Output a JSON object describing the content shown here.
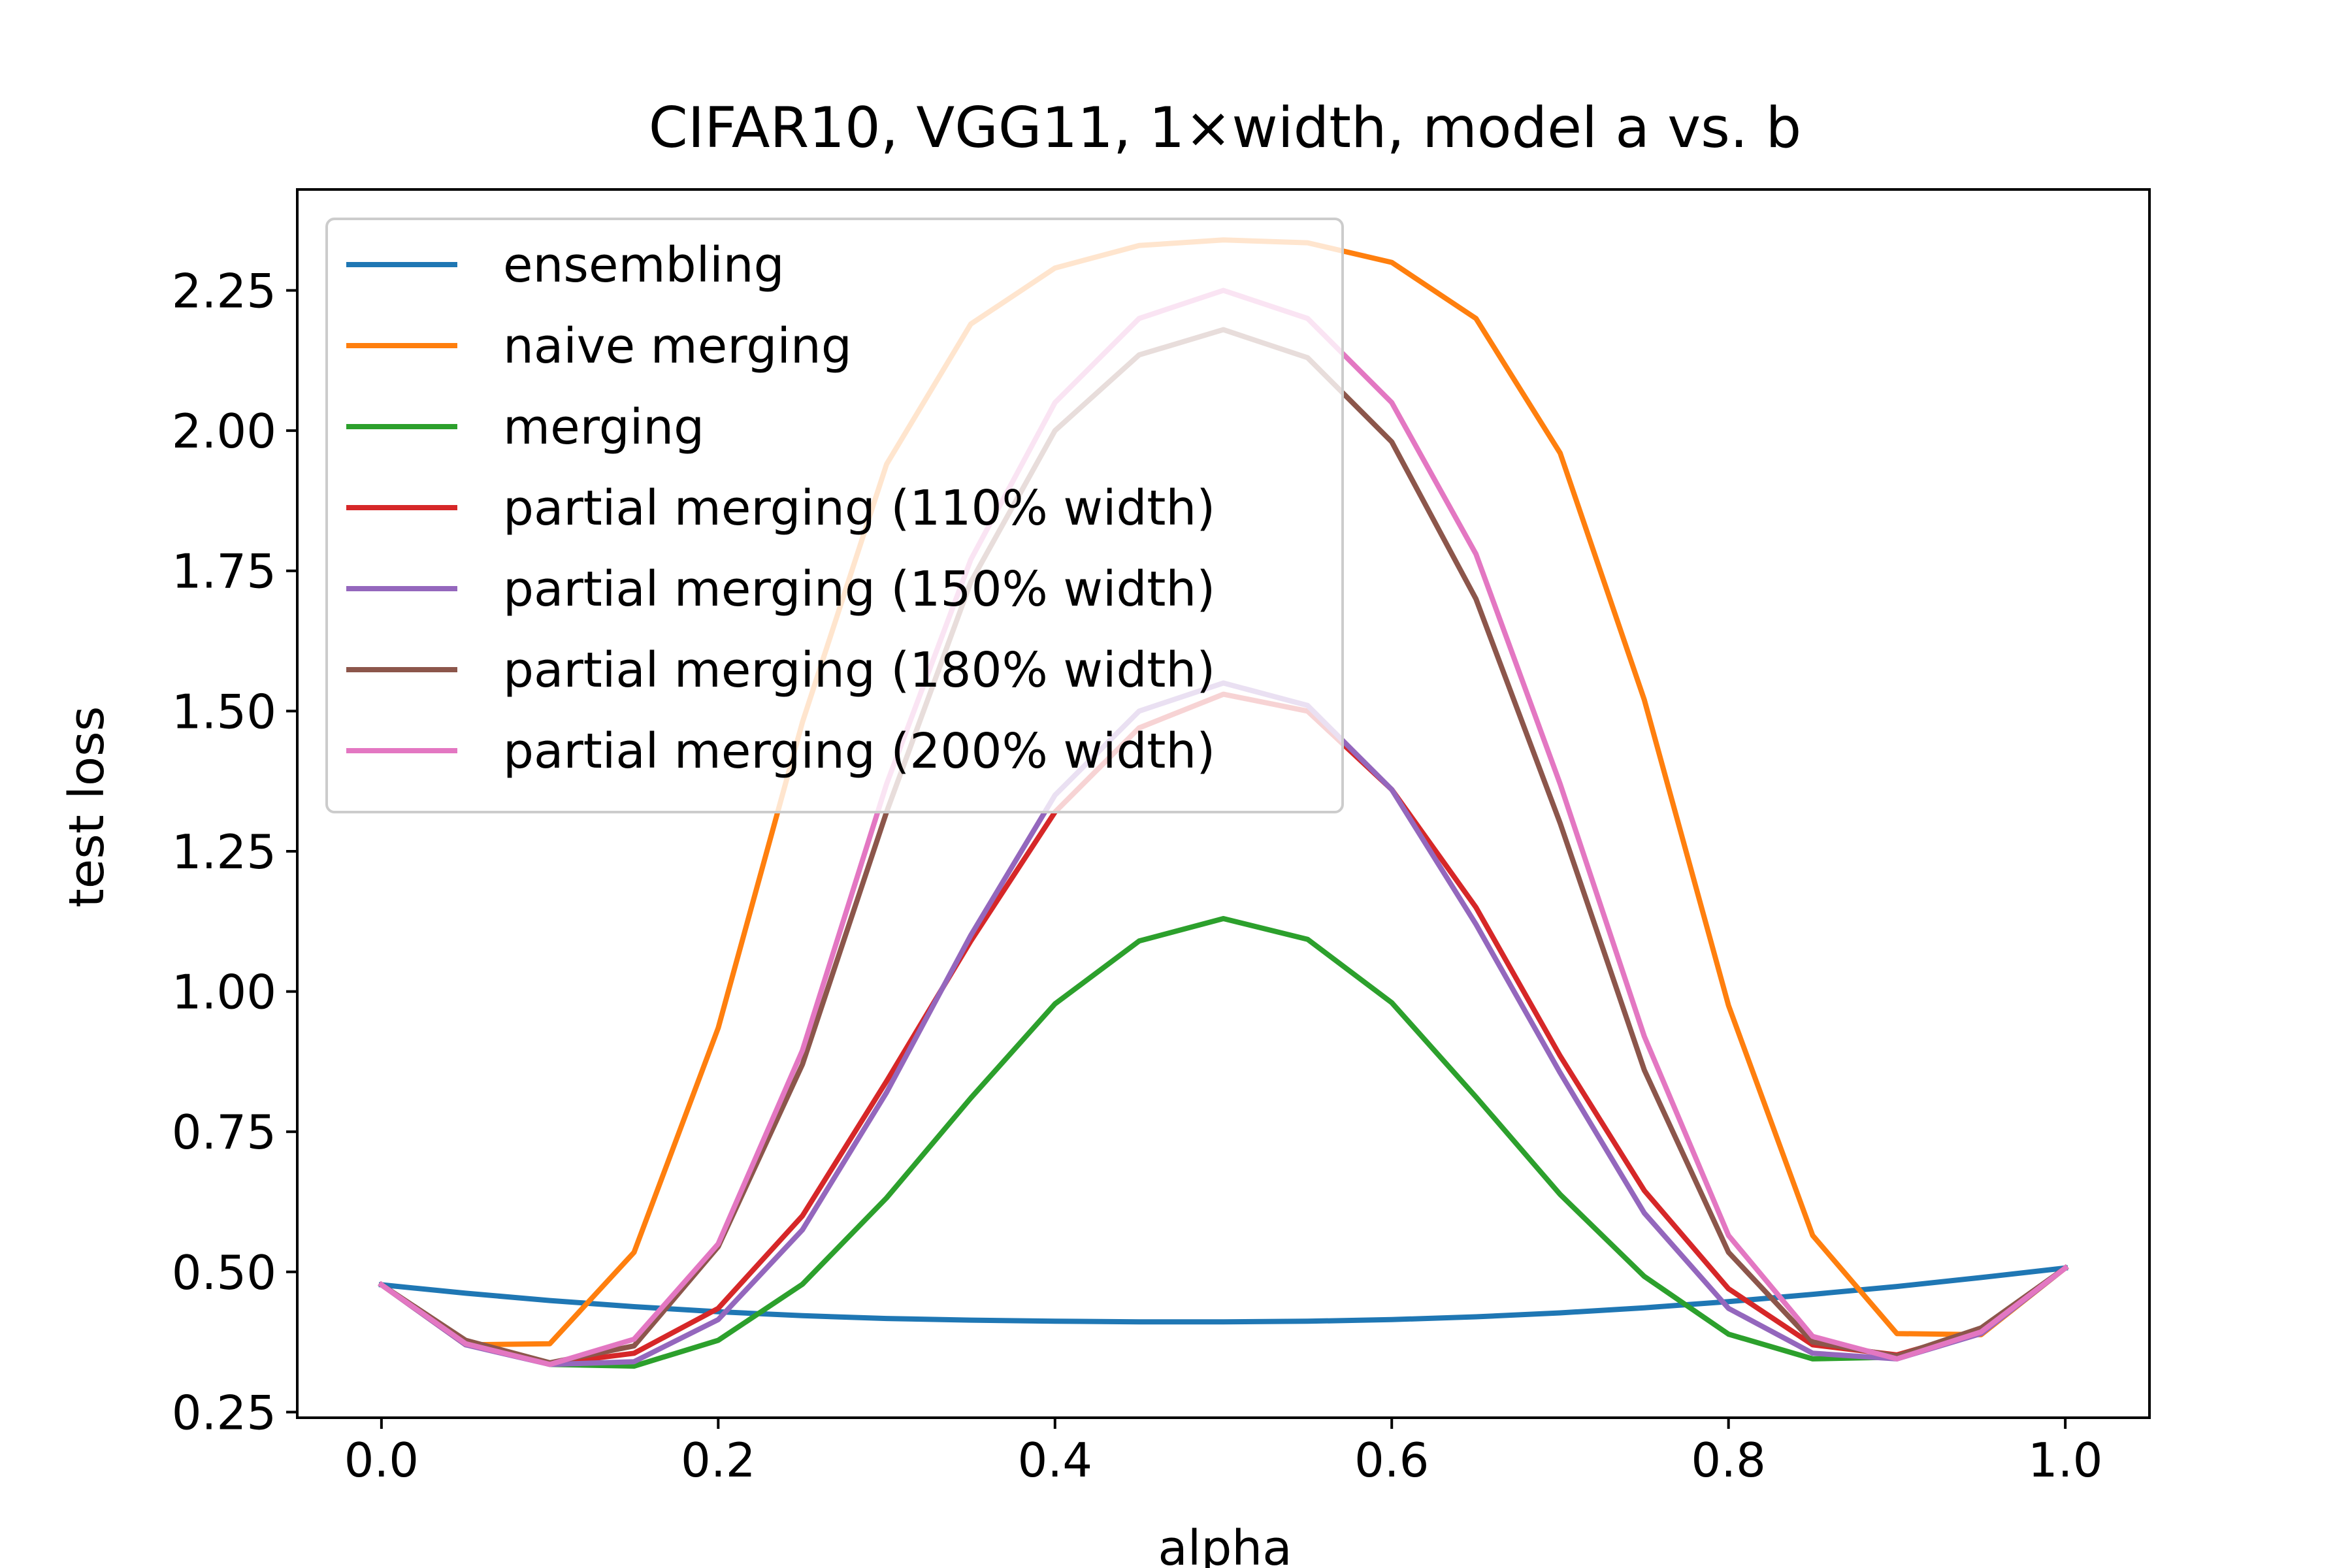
{
  "chart_data": {
    "type": "line",
    "title": "CIFAR10, VGG11, 1×width, model a vs. b",
    "xlabel": "alpha",
    "ylabel": "test loss",
    "xlim": [
      -0.05,
      1.05
    ],
    "ylim": [
      0.24,
      2.43
    ],
    "xticks": [
      0.0,
      0.2,
      0.4,
      0.6,
      0.8,
      1.0
    ],
    "xtick_labels": [
      "0.0",
      "0.2",
      "0.4",
      "0.6",
      "0.8",
      "1.0"
    ],
    "yticks": [
      0.25,
      0.5,
      0.75,
      1.0,
      1.25,
      1.5,
      1.75,
      2.0,
      2.25
    ],
    "ytick_labels": [
      "0.25",
      "0.50",
      "0.75",
      "1.00",
      "1.25",
      "1.50",
      "1.75",
      "2.00",
      "2.25"
    ],
    "grid": false,
    "legend_position": "top-left",
    "x": [
      0.0,
      0.05,
      0.1,
      0.15,
      0.2,
      0.25,
      0.3,
      0.35,
      0.4,
      0.45,
      0.5,
      0.55,
      0.6,
      0.65,
      0.7,
      0.75,
      0.8,
      0.85,
      0.9,
      0.95,
      1.0
    ],
    "series": [
      {
        "name": "ensembling",
        "color": "#1f77b4",
        "values": [
          0.477,
          0.462,
          0.449,
          0.438,
          0.429,
          0.422,
          0.417,
          0.414,
          0.412,
          0.411,
          0.411,
          0.412,
          0.415,
          0.42,
          0.427,
          0.436,
          0.447,
          0.46,
          0.474,
          0.49,
          0.507
        ]
      },
      {
        "name": "naive merging",
        "color": "#ff7f0e",
        "values": [
          0.477,
          0.37,
          0.372,
          0.535,
          0.935,
          1.48,
          1.94,
          2.19,
          2.29,
          2.33,
          2.34,
          2.335,
          2.3,
          2.2,
          1.96,
          1.52,
          0.975,
          0.565,
          0.39,
          0.388,
          0.507
        ]
      },
      {
        "name": "merging",
        "color": "#2ca02c",
        "values": [
          0.477,
          0.375,
          0.335,
          0.332,
          0.378,
          0.478,
          0.632,
          0.81,
          0.978,
          1.09,
          1.13,
          1.093,
          0.98,
          0.812,
          0.638,
          0.492,
          0.389,
          0.345,
          0.348,
          0.398,
          0.507
        ]
      },
      {
        "name": "partial merging (110% width)",
        "color": "#d62728",
        "values": [
          0.477,
          0.372,
          0.336,
          0.355,
          0.435,
          0.6,
          0.84,
          1.09,
          1.32,
          1.47,
          1.53,
          1.5,
          1.36,
          1.15,
          0.885,
          0.645,
          0.47,
          0.37,
          0.352,
          0.395,
          0.507
        ]
      },
      {
        "name": "partial merging (150% width)",
        "color": "#9467bd",
        "values": [
          0.477,
          0.37,
          0.335,
          0.34,
          0.415,
          0.575,
          0.82,
          1.1,
          1.35,
          1.5,
          1.55,
          1.51,
          1.36,
          1.12,
          0.855,
          0.605,
          0.435,
          0.355,
          0.345,
          0.39,
          0.507
        ]
      },
      {
        "name": "partial merging (180% width)",
        "color": "#8c564b",
        "values": [
          0.477,
          0.378,
          0.338,
          0.368,
          0.545,
          0.87,
          1.32,
          1.73,
          2.0,
          2.135,
          2.18,
          2.13,
          1.98,
          1.7,
          1.3,
          0.86,
          0.535,
          0.375,
          0.35,
          0.4,
          0.507
        ]
      },
      {
        "name": "partial merging (200% width)",
        "color": "#e377c2",
        "values": [
          0.477,
          0.372,
          0.335,
          0.38,
          0.55,
          0.895,
          1.37,
          1.77,
          2.05,
          2.2,
          2.25,
          2.2,
          2.05,
          1.78,
          1.37,
          0.92,
          0.565,
          0.385,
          0.345,
          0.393,
          0.507
        ]
      }
    ]
  }
}
